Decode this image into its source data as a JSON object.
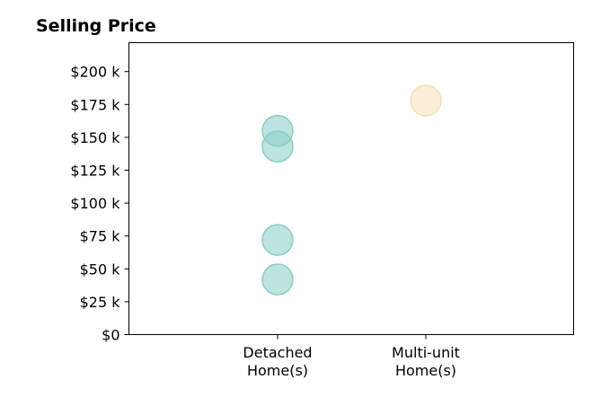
{
  "chart_data": {
    "type": "scatter",
    "title": "Selling Price",
    "xlabel": "",
    "ylabel": "",
    "categories": [
      [
        "Detached",
        "Home(s)"
      ],
      [
        "Multi-unit",
        "Home(s)"
      ]
    ],
    "ylim": [
      0,
      222
    ],
    "yticks": [
      0,
      25,
      50,
      75,
      100,
      125,
      150,
      175,
      200
    ],
    "yticklabels": [
      "$0",
      "$25 k",
      "$50 k",
      "$75 k",
      "$100 k",
      "$125 k",
      "$150 k",
      "$175 k",
      "$200 k"
    ],
    "grid": false,
    "series": [
      {
        "category_index": 0,
        "color": "#88cdc4",
        "values": [
          155,
          143,
          72,
          42
        ]
      },
      {
        "category_index": 1,
        "color": "#f5e0b5",
        "values": [
          178
        ]
      }
    ]
  }
}
